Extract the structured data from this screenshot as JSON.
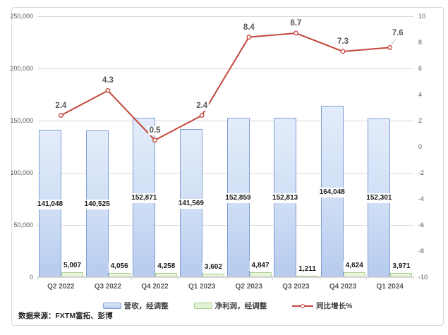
{
  "chart_data": {
    "type": "combo-bar-line",
    "categories": [
      "Q2 2022",
      "Q3 2022",
      "Q4 2022",
      "Q1 2023",
      "Q2 2023",
      "Q3 2023",
      "Q4 2023",
      "Q1 2024"
    ],
    "series": [
      {
        "name": "营收，经调整",
        "type": "bar",
        "axis": "left",
        "values": [
          141048,
          140525,
          152871,
          141569,
          152859,
          152813,
          164048,
          152301
        ],
        "labels": [
          "141,048",
          "140,525",
          "152,871",
          "141,569",
          "152,859",
          "152,813",
          "164,048",
          "152,301"
        ]
      },
      {
        "name": "净利润，经调整",
        "type": "bar",
        "axis": "left",
        "values": [
          5007,
          4056,
          4258,
          3602,
          4847,
          1211,
          4624,
          3971
        ],
        "labels": [
          "5,007",
          "4,056",
          "4,258",
          "3,602",
          "4,847",
          "1,211",
          "4,624",
          "3,971"
        ]
      },
      {
        "name": "同比增长%",
        "type": "line",
        "axis": "right",
        "values": [
          2.4,
          4.3,
          0.5,
          2.4,
          8.4,
          8.7,
          7.3,
          7.6
        ],
        "labels": [
          "2.4",
          "4.3",
          "0.5",
          "2.4",
          "8.4",
          "8.7",
          "7.3",
          "7.6"
        ],
        "last_label_offset": {
          "dx": 11,
          "dy": -6,
          "leader": true
        }
      }
    ],
    "left_axis": {
      "min": 0,
      "max": 250000,
      "ticks": [
        "250,000",
        "200,000",
        "150,000",
        "100,000",
        "50,000",
        "0"
      ]
    },
    "right_axis": {
      "min": -10,
      "max": 10,
      "ticks": [
        "10",
        "8",
        "6",
        "4",
        "2",
        "0",
        "-2",
        "-4",
        "-6",
        "-8",
        "-10"
      ]
    },
    "gridlines": {
      "show": true,
      "color": "#d9d9d9"
    },
    "legend_position": "bottom"
  },
  "legend": {
    "items": [
      {
        "label": "营收，经调整",
        "swatch": "bar-blue"
      },
      {
        "label": "净利润，经调整",
        "swatch": "bar-green"
      },
      {
        "label": "同比增长%",
        "swatch": "line-red"
      }
    ]
  },
  "source_note": "数据来源：FXTM富拓、彭博",
  "colors": {
    "bar_revenue_fill_top": "#e3ecfa",
    "bar_revenue_fill_bottom": "#b6cbee",
    "bar_revenue_border": "#7f9ed5",
    "bar_profit_fill": "#e3f0d8",
    "bar_profit_border": "#a6cf8b",
    "line_growth": "#c4473c",
    "growth_label_text": "#595959",
    "data_label_text": "#1a1a1a",
    "axis_text": "#595959",
    "gridline": "#d9d9d9"
  }
}
